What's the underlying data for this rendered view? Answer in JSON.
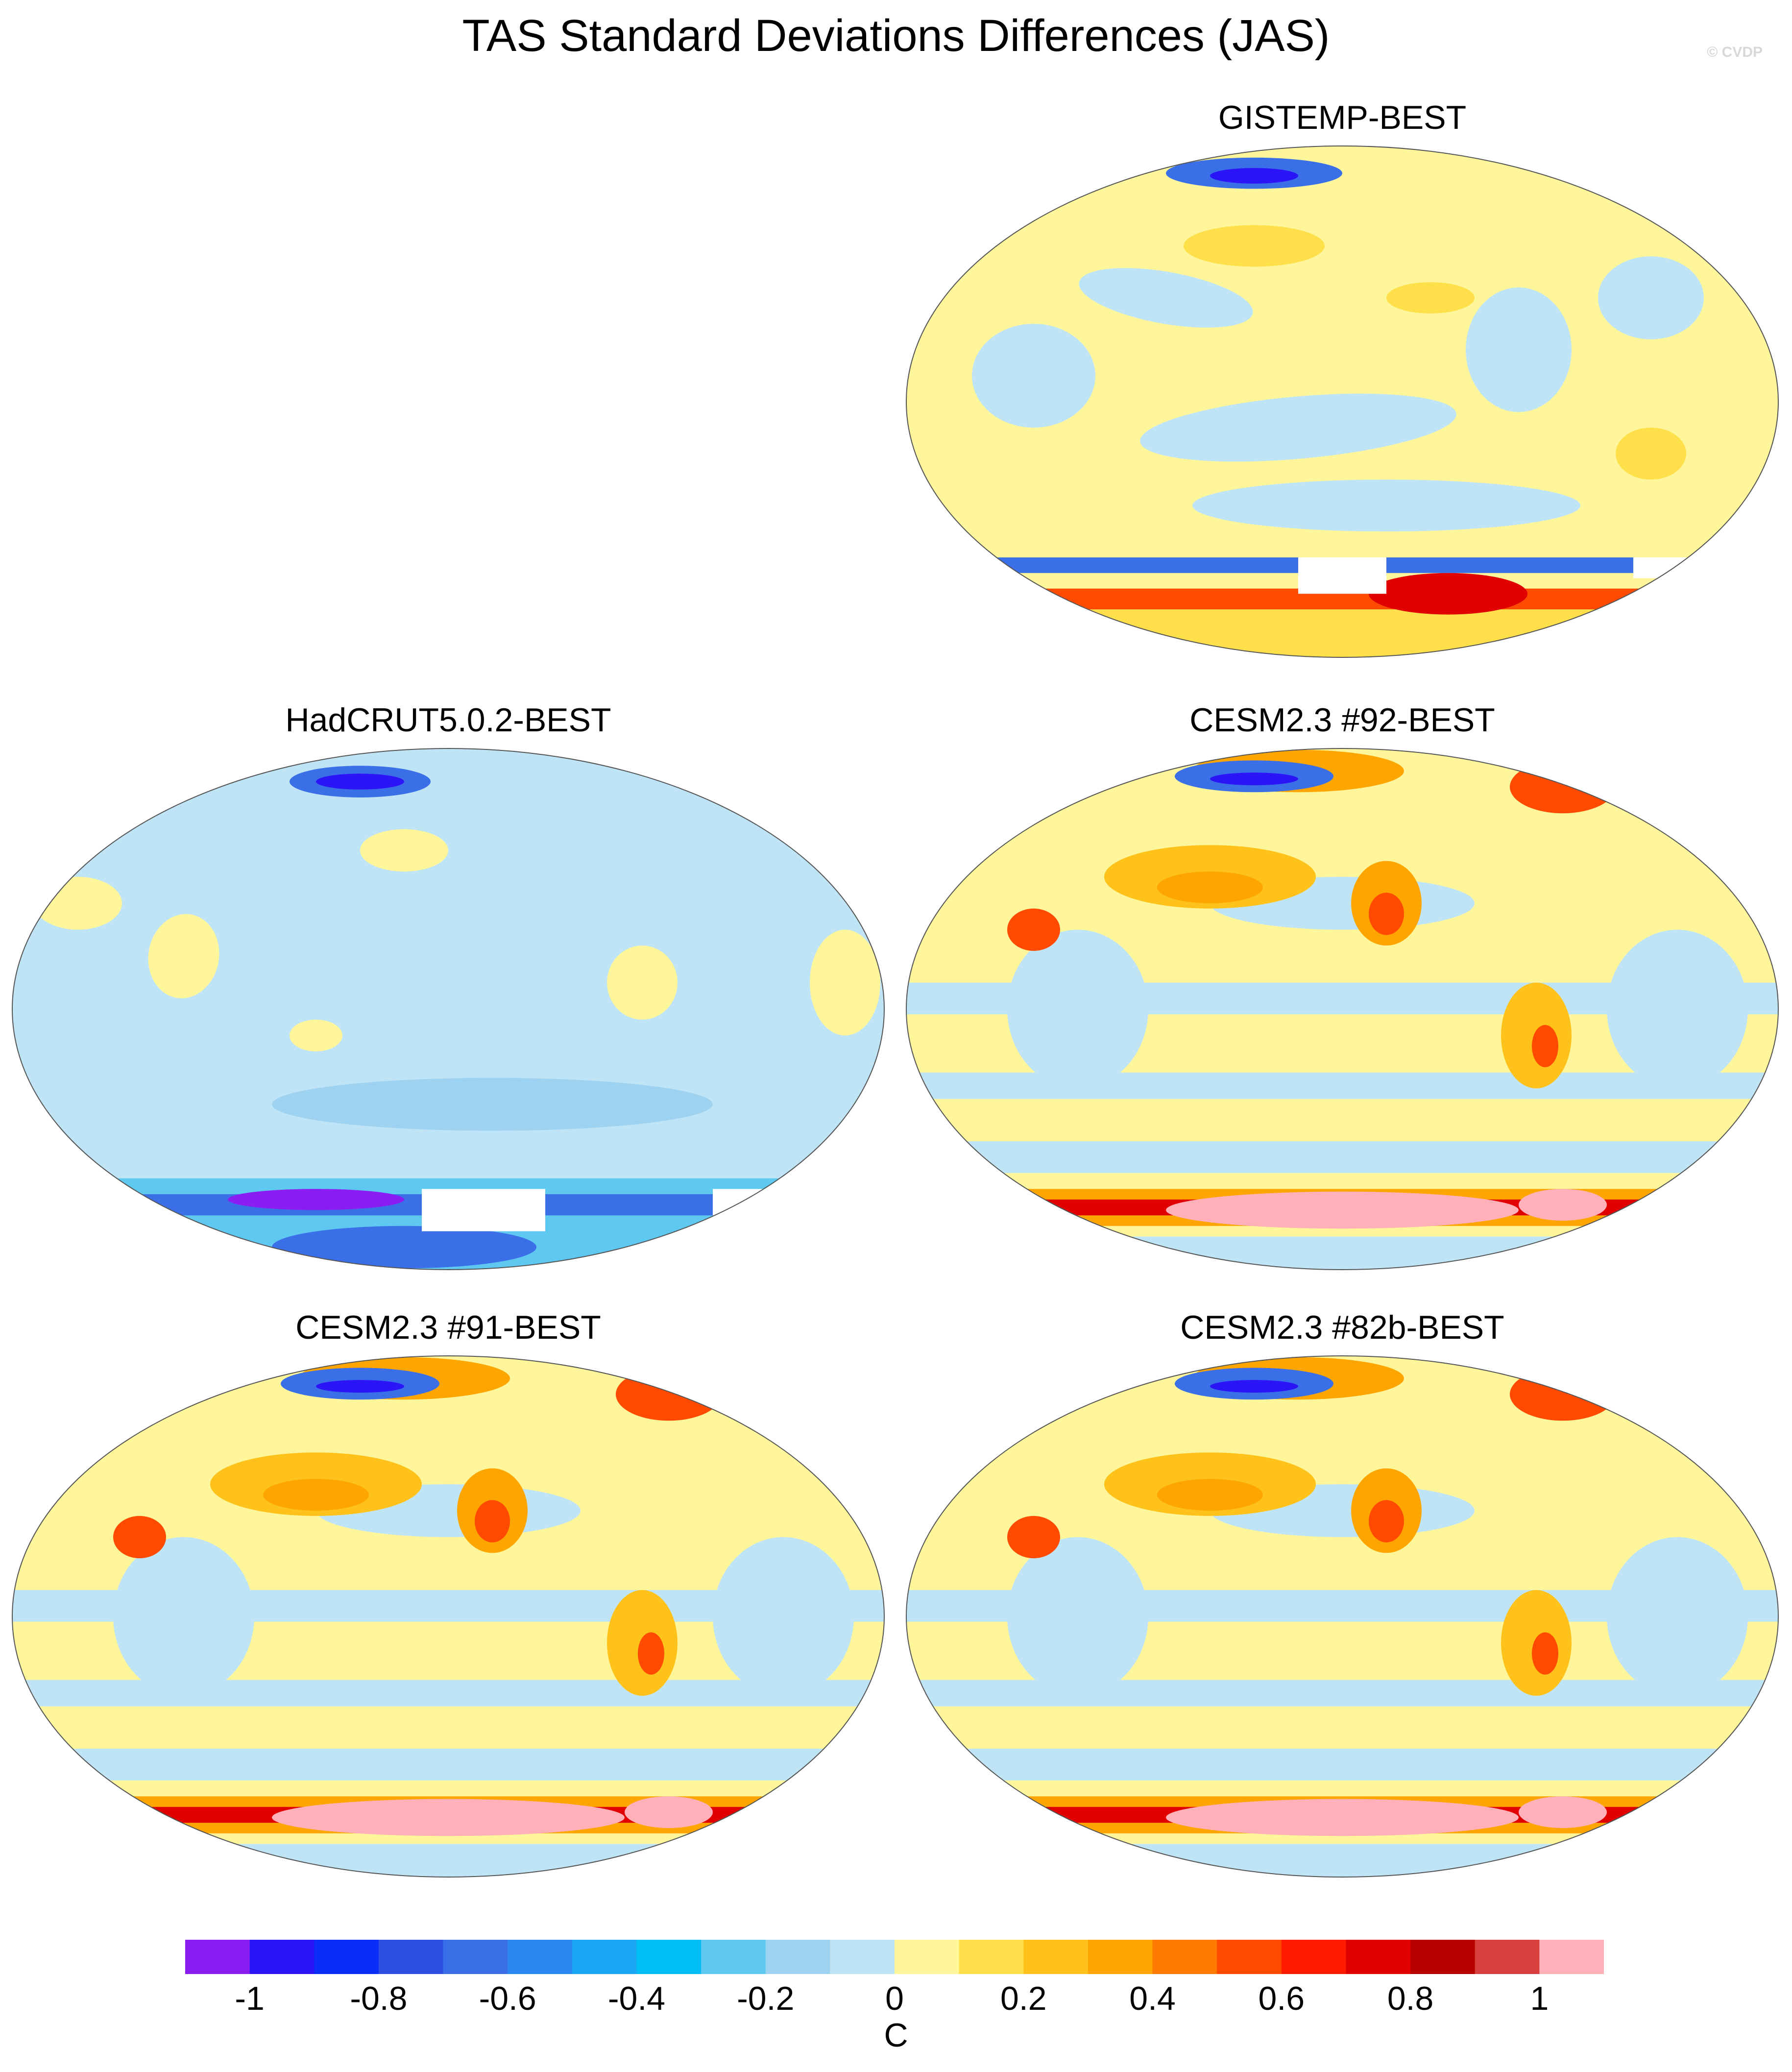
{
  "title": "TAS Standard Deviations Differences (JAS)",
  "watermark": "© CVDP",
  "panels": [
    {
      "id": "gistemp",
      "title": "GISTEMP-BEST",
      "style": "obs"
    },
    {
      "id": "hadcrut",
      "title": "HadCRUT5.0.2-BEST",
      "style": "had"
    },
    {
      "id": "cesm92",
      "title": "CESM2.3 #92-BEST",
      "style": "model"
    },
    {
      "id": "cesm91",
      "title": "CESM2.3 #91-BEST",
      "style": "model"
    },
    {
      "id": "cesm82b",
      "title": "CESM2.3 #82b-BEST",
      "style": "model"
    }
  ],
  "colorbar": {
    "colors": [
      "#8a1ef2",
      "#2b14f5",
      "#0a2df7",
      "#2e4fe4",
      "#3a6fe8",
      "#2a86f0",
      "#1aa6f2",
      "#00bdf7",
      "#5fc8f0",
      "#9dd2f0",
      "#bfe4f6",
      "#fff59a",
      "#ffe04a",
      "#ffc21a",
      "#ffa500",
      "#ff7a00",
      "#ff4a00",
      "#ff1a00",
      "#e00000",
      "#b80000",
      "#d84040",
      "#ffb0b8"
    ],
    "tick_labels": [
      "-1",
      "-0.8",
      "-0.6",
      "-0.4",
      "-0.2",
      "0",
      "0.2",
      "0.4",
      "0.6",
      "0.8",
      "1"
    ],
    "units": "C"
  }
}
